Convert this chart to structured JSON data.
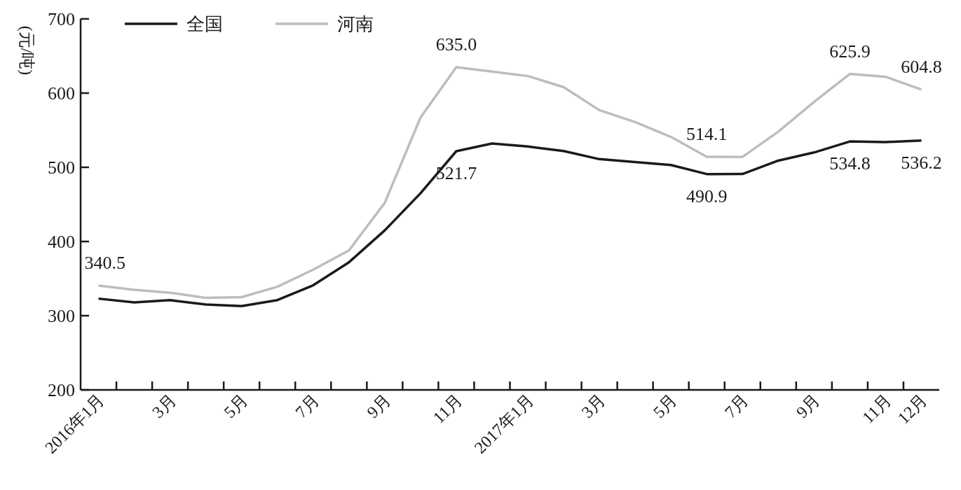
{
  "chart_data": {
    "type": "line",
    "ylabel": "(元/吨)",
    "categories": [
      "2016年1月",
      null,
      "3月",
      null,
      "5月",
      null,
      "7月",
      null,
      "9月",
      null,
      "11月",
      null,
      "2017年1月",
      null,
      "3月",
      null,
      "5月",
      null,
      "7月",
      null,
      "9月",
      null,
      "11月",
      "12月"
    ],
    "series": [
      {
        "name": "全国",
        "color": "#1a1a1a",
        "values": [
          323,
          318,
          321,
          315,
          313,
          321,
          341,
          372,
          415,
          465,
          521.7,
          532,
          528,
          522,
          511,
          507,
          503,
          490.9,
          491,
          509,
          520,
          534.8,
          534,
          536.2
        ],
        "value_labels": [
          null,
          null,
          null,
          null,
          null,
          null,
          null,
          null,
          null,
          null,
          "521.7",
          null,
          null,
          null,
          null,
          null,
          null,
          "490.9",
          null,
          null,
          null,
          "534.8",
          null,
          "536.2"
        ]
      },
      {
        "name": "河南",
        "color": "#bdbdbd",
        "values": [
          340.5,
          335,
          331,
          324,
          325,
          339,
          362,
          388,
          452,
          567,
          635.0,
          629,
          623,
          608,
          577,
          561,
          541,
          514.1,
          514,
          548,
          588,
          625.9,
          622,
          604.8
        ],
        "value_labels": [
          "340.5",
          null,
          null,
          null,
          null,
          null,
          null,
          null,
          null,
          null,
          "635.0",
          null,
          null,
          null,
          null,
          null,
          null,
          "514.1",
          null,
          null,
          null,
          "625.9",
          null,
          "604.8"
        ]
      }
    ],
    "ylim": [
      200,
      700
    ],
    "yticks": [
      200,
      300,
      400,
      500,
      600,
      700
    ],
    "legend": "top left",
    "grid": false,
    "marker": "none",
    "line_style": "solid"
  }
}
